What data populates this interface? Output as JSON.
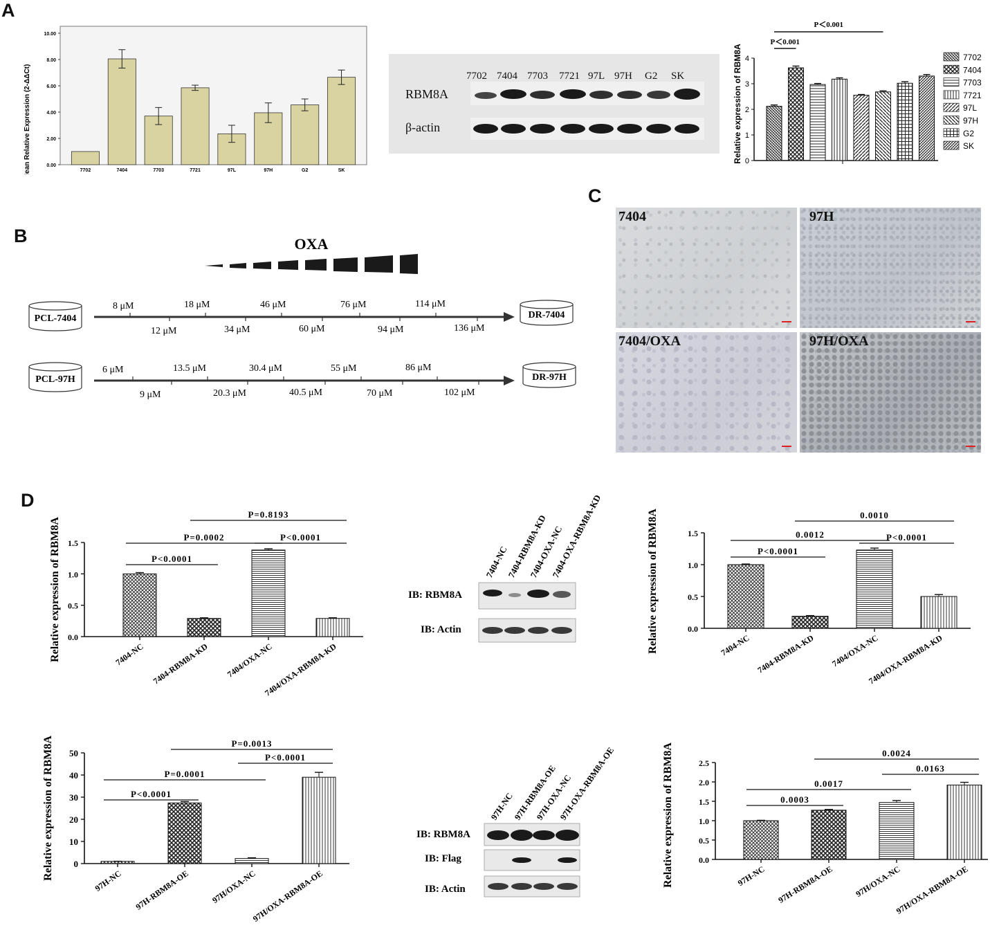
{
  "panel_labels": {
    "A": "A",
    "B": "B",
    "C": "C",
    "D": "D"
  },
  "panelA": {
    "wb": {
      "lanes": [
        "7702",
        "7404",
        "7703",
        "7721",
        "97L",
        "97H",
        "G2",
        "SK"
      ],
      "row1": "RBM8A",
      "row2": "β-actin"
    }
  },
  "panelB": {
    "title": "OXA",
    "row1": {
      "start": "PCL-7404",
      "end": "DR-7404",
      "top": [
        "8 μM",
        "18 μM",
        "46 μM",
        "76 μM",
        "114 μM"
      ],
      "bottom": [
        "12 μM",
        "34 μM",
        "60 μM",
        "94 μM",
        "136 μM"
      ]
    },
    "row2": {
      "start": "PCL-97H",
      "end": "DR-97H",
      "top": [
        "6 μM",
        "13.5 μM",
        "30.4 μM",
        "55 μM",
        "86 μM"
      ],
      "bottom": [
        "9 μM",
        "20.3 μM",
        "40.5 μM",
        "70 μM",
        "102 μM"
      ]
    }
  },
  "panelC": {
    "images": [
      "7404",
      "97H",
      "7404/OXA",
      "97H/OXA"
    ]
  },
  "panelD": {
    "wb1": {
      "lanes": [
        "7404-NC",
        "7404-RBM8A-KD",
        "7404-OXA-NC",
        "7404-OXA-RBM8A-KD"
      ],
      "rows": [
        "IB:  RBM8A",
        "IB:  Actin"
      ]
    },
    "wb2": {
      "lanes": [
        "97H-NC",
        "97H-RBM8A-OE",
        "97H-OXA-NC",
        "97H-OXA-RBM8A-OE"
      ],
      "rows": [
        "IB:  RBM8A",
        "IB:  Flag",
        "IB:  Actin"
      ]
    }
  },
  "chart_data": [
    {
      "id": "A1",
      "type": "bar",
      "ylabel": "Mean Relative Expression  (2-ΔΔCt)",
      "categories": [
        "7702",
        "7404",
        "7703",
        "7721",
        "97L",
        "97H",
        "G2",
        "SK"
      ],
      "values": [
        1.0,
        8.05,
        3.7,
        5.85,
        2.35,
        3.95,
        4.55,
        6.65
      ],
      "errors": [
        0,
        0.7,
        0.65,
        0.2,
        0.65,
        0.75,
        0.45,
        0.55
      ],
      "ylim": [
        0,
        10
      ],
      "yticks": [
        "0.00",
        "2.00",
        "4.00",
        "6.00",
        "8.00",
        "10.00"
      ],
      "bar_color": "#d8d3a0",
      "grid": false
    },
    {
      "id": "A2",
      "type": "bar",
      "ylabel": "Relative expression of RBM8A",
      "categories": [
        "7702",
        "7404",
        "7703",
        "7721",
        "97L",
        "97H",
        "G2",
        "SK"
      ],
      "values": [
        2.12,
        3.62,
        2.97,
        3.18,
        2.55,
        2.68,
        3.02,
        3.3
      ],
      "errors": [
        0.05,
        0.07,
        0.04,
        0.05,
        0.03,
        0.04,
        0.06,
        0.06
      ],
      "ylim": [
        0,
        4
      ],
      "yticks": [
        "0",
        "1",
        "2",
        "3",
        "4"
      ],
      "legend": [
        "7702",
        "7404",
        "7703",
        "7721",
        "97L",
        "97H",
        "G2",
        "SK"
      ],
      "legend_position": "right",
      "annotations": [
        "P＜0.001",
        "P＜0.001"
      ]
    },
    {
      "id": "D1",
      "type": "bar",
      "ylabel": "Relative expression of RBM8A",
      "categories": [
        "7404-NC",
        "7404-RBM8A-KD",
        "7404/OXA-NC",
        "7404/OXA-RBM8A-KD"
      ],
      "values": [
        1.0,
        0.29,
        1.38,
        0.29
      ],
      "errors": [
        0.02,
        0.01,
        0.02,
        0.01
      ],
      "ylim": [
        0,
        1.5
      ],
      "yticks": [
        "0.0",
        "0.5",
        "1.0",
        "1.5"
      ],
      "annotations": [
        "P<0.0001",
        "P=0.0002",
        "P<0.0001",
        "P=0.8193"
      ]
    },
    {
      "id": "D2",
      "type": "bar",
      "ylabel": "Relative expression of RBM8A",
      "categories": [
        "7404-NC",
        "7404-RBM8A-KD",
        "7404/OXA-NC",
        "7404/OXA-RBM8A-KD"
      ],
      "values": [
        1.0,
        0.19,
        1.23,
        0.5
      ],
      "errors": [
        0.01,
        0.01,
        0.03,
        0.03
      ],
      "ylim": [
        0,
        1.5
      ],
      "yticks": [
        "0.0",
        "0.5",
        "1.0",
        "1.5"
      ],
      "annotations": [
        "P<0.0001",
        "0.0012",
        "P<0.0001",
        "0.0010"
      ]
    },
    {
      "id": "D3",
      "type": "bar",
      "ylabel": "Relative expression of  RBM8A",
      "categories": [
        "97H-NC",
        "97H-RBM8A-OE",
        "97H/OXA-NC",
        "97H/OXA-RBM8A-OE"
      ],
      "values": [
        1.0,
        27.4,
        2.3,
        39.0
      ],
      "errors": [
        0.05,
        0.6,
        0.3,
        2.2
      ],
      "ylim": [
        0,
        50
      ],
      "yticks": [
        "0",
        "10",
        "20",
        "30",
        "40",
        "50"
      ],
      "annotations": [
        "P<0.0001",
        "P=0.0001",
        "P<0.0001",
        "P=0.0013"
      ]
    },
    {
      "id": "D4",
      "type": "bar",
      "ylabel": "Relative expression of RBM8A",
      "categories": [
        "97H-NC",
        "97H-RBM8A-OE",
        "97H/OXA-NC",
        "97H/OXA-RBM8A-OE"
      ],
      "values": [
        1.0,
        1.27,
        1.47,
        1.92
      ],
      "errors": [
        0.01,
        0.02,
        0.05,
        0.07
      ],
      "ylim": [
        0,
        2.5
      ],
      "yticks": [
        "0.0",
        "0.5",
        "1.0",
        "1.5",
        "2.0",
        "2.5"
      ],
      "annotations": [
        "0.0003",
        "0.0017",
        "0.0163",
        "0.0024"
      ]
    }
  ]
}
